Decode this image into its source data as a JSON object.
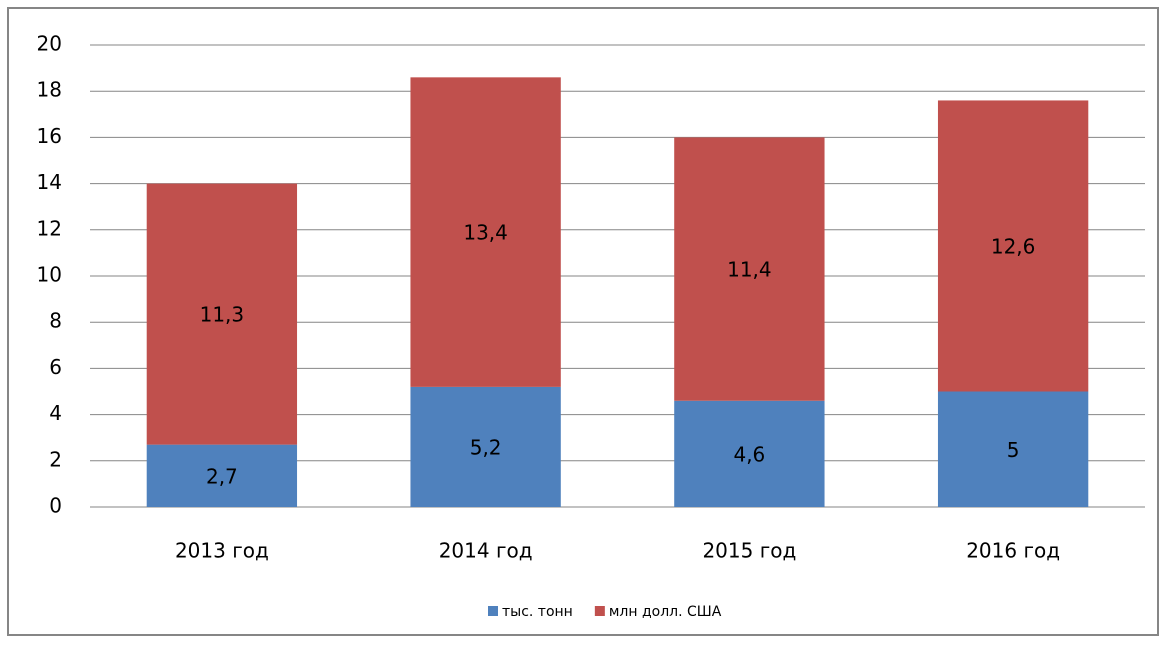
{
  "chart_data": {
    "type": "stacked_bar",
    "categories": [
      "2013 год",
      "2014 год",
      "2015 год",
      "2016 год"
    ],
    "series": [
      {
        "name": "тыс. тонн",
        "color": "#4f81bd",
        "values": [
          2.7,
          5.2,
          4.6,
          5
        ],
        "value_labels": [
          "2,7",
          "5,2",
          "4,6",
          "5"
        ]
      },
      {
        "name": "млн долл. США",
        "color": "#c0504d",
        "values": [
          11.3,
          13.4,
          11.4,
          12.6
        ],
        "value_labels": [
          "11,3",
          "13,4",
          "11,4",
          "12,6"
        ]
      }
    ],
    "ylim": [
      0,
      20
    ],
    "yticks": [
      0,
      2,
      4,
      6,
      8,
      10,
      12,
      14,
      16,
      18,
      20
    ],
    "grid": true,
    "legend": "bottom"
  }
}
